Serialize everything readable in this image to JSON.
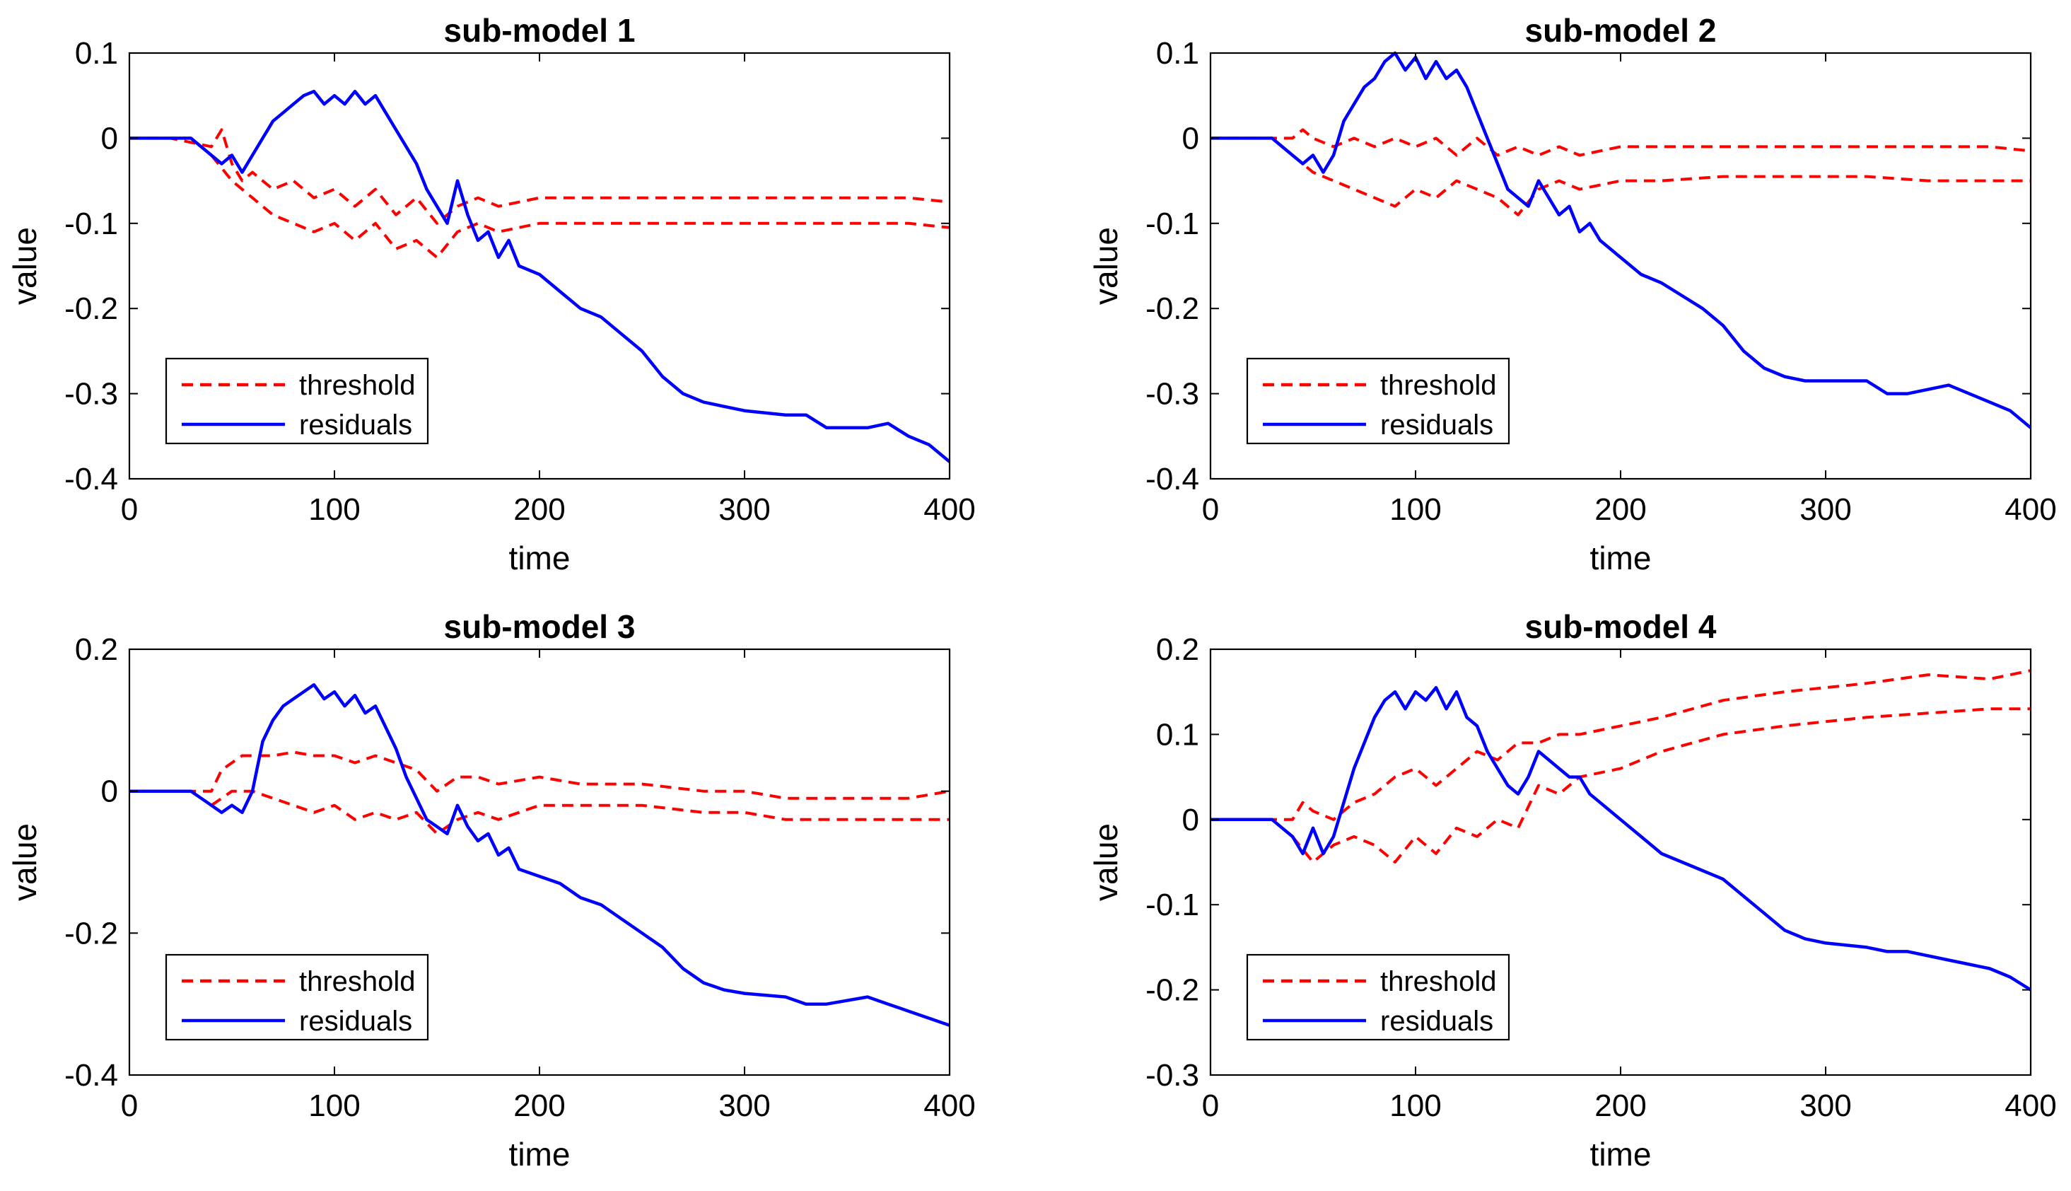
{
  "chart_data": [
    {
      "type": "line",
      "title": "sub-model 1",
      "xlabel": "time",
      "ylabel": "value",
      "xlim": [
        0,
        400
      ],
      "ylim": [
        -0.4,
        0.1
      ],
      "xticks": [
        0,
        100,
        200,
        300,
        400
      ],
      "yticks": [
        -0.4,
        -0.3,
        -0.2,
        -0.1,
        0,
        0.1
      ],
      "xtick_labels": [
        "0",
        "100",
        "200",
        "300",
        "400"
      ],
      "ytick_labels": [
        "-0.4",
        "-0.3",
        "-0.2",
        "-0.1",
        "0",
        "0.1"
      ],
      "legend": {
        "position": "bottom-left",
        "entries": [
          "threshold",
          "residuals"
        ]
      },
      "series": [
        {
          "name": "threshold",
          "color": "#ff0000",
          "style": "dashed",
          "x": [
            0,
            20,
            40,
            45,
            50,
            55,
            60,
            70,
            80,
            90,
            100,
            110,
            120,
            130,
            140,
            150,
            160,
            170,
            180,
            200,
            220,
            250,
            280,
            300,
            320,
            350,
            380,
            400
          ],
          "y": [
            0,
            0,
            -0.01,
            0.01,
            -0.03,
            -0.05,
            -0.04,
            -0.06,
            -0.05,
            -0.07,
            -0.06,
            -0.08,
            -0.06,
            -0.09,
            -0.07,
            -0.1,
            -0.08,
            -0.07,
            -0.08,
            -0.07,
            -0.07,
            -0.07,
            -0.07,
            -0.07,
            -0.07,
            -0.07,
            -0.07,
            -0.075
          ]
        },
        {
          "name": "threshold-lower",
          "color": "#ff0000",
          "style": "dashed",
          "x": [
            40,
            50,
            60,
            70,
            80,
            90,
            100,
            110,
            120,
            130,
            140,
            150,
            160,
            170,
            180,
            200,
            220,
            250,
            280,
            300,
            320,
            350,
            380,
            400
          ],
          "y": [
            -0.02,
            -0.05,
            -0.07,
            -0.09,
            -0.1,
            -0.11,
            -0.1,
            -0.12,
            -0.1,
            -0.13,
            -0.12,
            -0.14,
            -0.11,
            -0.1,
            -0.11,
            -0.1,
            -0.1,
            -0.1,
            -0.1,
            -0.1,
            -0.1,
            -0.1,
            -0.1,
            -0.105
          ]
        },
        {
          "name": "residuals",
          "color": "#0000ff",
          "style": "solid",
          "x": [
            0,
            20,
            30,
            40,
            45,
            50,
            55,
            60,
            65,
            70,
            75,
            80,
            85,
            90,
            95,
            100,
            105,
            110,
            115,
            120,
            125,
            130,
            135,
            140,
            145,
            150,
            155,
            160,
            165,
            170,
            175,
            180,
            185,
            190,
            200,
            210,
            220,
            230,
            240,
            250,
            260,
            270,
            280,
            290,
            300,
            320,
            330,
            340,
            360,
            370,
            380,
            390,
            400
          ],
          "y": [
            0,
            0,
            0,
            -0.02,
            -0.03,
            -0.02,
            -0.04,
            -0.02,
            0.0,
            0.02,
            0.03,
            0.04,
            0.05,
            0.055,
            0.04,
            0.05,
            0.04,
            0.055,
            0.04,
            0.05,
            0.03,
            0.01,
            -0.01,
            -0.03,
            -0.06,
            -0.08,
            -0.1,
            -0.05,
            -0.09,
            -0.12,
            -0.11,
            -0.14,
            -0.12,
            -0.15,
            -0.16,
            -0.18,
            -0.2,
            -0.21,
            -0.23,
            -0.25,
            -0.28,
            -0.3,
            -0.31,
            -0.315,
            -0.32,
            -0.325,
            -0.325,
            -0.34,
            -0.34,
            -0.335,
            -0.35,
            -0.36,
            -0.38
          ]
        }
      ]
    },
    {
      "type": "line",
      "title": "sub-model 2",
      "xlabel": "time",
      "ylabel": "value",
      "xlim": [
        0,
        400
      ],
      "ylim": [
        -0.4,
        0.1
      ],
      "xticks": [
        0,
        100,
        200,
        300,
        400
      ],
      "yticks": [
        -0.4,
        -0.3,
        -0.2,
        -0.1,
        0,
        0.1
      ],
      "xtick_labels": [
        "0",
        "100",
        "200",
        "300",
        "400"
      ],
      "ytick_labels": [
        "-0.4",
        "-0.3",
        "-0.2",
        "-0.1",
        "0",
        "0.1"
      ],
      "legend": {
        "position": "bottom-left",
        "entries": [
          "threshold",
          "residuals"
        ]
      },
      "series": [
        {
          "name": "threshold",
          "color": "#ff0000",
          "style": "dashed",
          "x": [
            0,
            20,
            40,
            45,
            50,
            60,
            70,
            80,
            90,
            100,
            110,
            120,
            130,
            140,
            150,
            160,
            170,
            180,
            200,
            220,
            250,
            280,
            300,
            320,
            350,
            380,
            400
          ],
          "y": [
            0,
            0,
            0,
            0.01,
            0.0,
            -0.01,
            0.0,
            -0.01,
            0.0,
            -0.01,
            0.0,
            -0.02,
            0.0,
            -0.02,
            -0.01,
            -0.02,
            -0.01,
            -0.02,
            -0.01,
            -0.01,
            -0.01,
            -0.01,
            -0.01,
            -0.01,
            -0.01,
            -0.01,
            -0.015
          ]
        },
        {
          "name": "threshold-lower",
          "color": "#ff0000",
          "style": "dashed",
          "x": [
            40,
            50,
            60,
            70,
            80,
            90,
            100,
            110,
            120,
            130,
            140,
            150,
            160,
            170,
            180,
            200,
            220,
            250,
            280,
            300,
            320,
            350,
            380,
            400
          ],
          "y": [
            -0.02,
            -0.04,
            -0.05,
            -0.06,
            -0.07,
            -0.08,
            -0.06,
            -0.07,
            -0.05,
            -0.06,
            -0.07,
            -0.09,
            -0.06,
            -0.05,
            -0.06,
            -0.05,
            -0.05,
            -0.045,
            -0.045,
            -0.045,
            -0.045,
            -0.05,
            -0.05,
            -0.05
          ]
        },
        {
          "name": "residuals",
          "color": "#0000ff",
          "style": "solid",
          "x": [
            0,
            20,
            30,
            40,
            45,
            50,
            55,
            60,
            65,
            70,
            75,
            80,
            85,
            90,
            95,
            100,
            105,
            110,
            115,
            120,
            125,
            130,
            135,
            140,
            145,
            150,
            155,
            160,
            165,
            170,
            175,
            180,
            185,
            190,
            200,
            210,
            220,
            230,
            240,
            250,
            260,
            270,
            280,
            290,
            300,
            320,
            330,
            340,
            360,
            370,
            380,
            390,
            400
          ],
          "y": [
            0,
            0,
            0,
            -0.02,
            -0.03,
            -0.02,
            -0.04,
            -0.02,
            0.02,
            0.04,
            0.06,
            0.07,
            0.09,
            0.1,
            0.08,
            0.095,
            0.07,
            0.09,
            0.07,
            0.08,
            0.06,
            0.03,
            0.0,
            -0.03,
            -0.06,
            -0.07,
            -0.08,
            -0.05,
            -0.07,
            -0.09,
            -0.08,
            -0.11,
            -0.1,
            -0.12,
            -0.14,
            -0.16,
            -0.17,
            -0.185,
            -0.2,
            -0.22,
            -0.25,
            -0.27,
            -0.28,
            -0.285,
            -0.285,
            -0.285,
            -0.3,
            -0.3,
            -0.29,
            -0.3,
            -0.31,
            -0.32,
            -0.34
          ]
        }
      ]
    },
    {
      "type": "line",
      "title": "sub-model 3",
      "xlabel": "time",
      "ylabel": "value",
      "xlim": [
        0,
        400
      ],
      "ylim": [
        -0.4,
        0.2
      ],
      "xticks": [
        0,
        100,
        200,
        300,
        400
      ],
      "yticks": [
        -0.4,
        -0.2,
        0,
        0.2
      ],
      "xtick_labels": [
        "0",
        "100",
        "200",
        "300",
        "400"
      ],
      "ytick_labels": [
        "-0.4",
        "-0.2",
        "0",
        "0.2"
      ],
      "legend": {
        "position": "bottom-left",
        "entries": [
          "threshold",
          "residuals"
        ]
      },
      "series": [
        {
          "name": "threshold",
          "color": "#ff0000",
          "style": "dashed",
          "x": [
            0,
            20,
            40,
            45,
            50,
            55,
            60,
            70,
            80,
            90,
            100,
            110,
            120,
            130,
            140,
            150,
            160,
            170,
            180,
            200,
            220,
            250,
            280,
            300,
            320,
            350,
            380,
            400
          ],
          "y": [
            0,
            0,
            0,
            0.03,
            0.04,
            0.05,
            0.05,
            0.05,
            0.055,
            0.05,
            0.05,
            0.04,
            0.05,
            0.04,
            0.03,
            0.0,
            0.02,
            0.02,
            0.01,
            0.02,
            0.01,
            0.01,
            0.0,
            0.0,
            -0.01,
            -0.01,
            -0.01,
            0.0
          ]
        },
        {
          "name": "threshold-lower",
          "color": "#ff0000",
          "style": "dashed",
          "x": [
            40,
            50,
            60,
            70,
            80,
            90,
            100,
            110,
            120,
            130,
            140,
            150,
            160,
            170,
            180,
            200,
            220,
            250,
            280,
            300,
            320,
            350,
            380,
            400
          ],
          "y": [
            -0.02,
            0.0,
            0.0,
            -0.01,
            -0.02,
            -0.03,
            -0.02,
            -0.04,
            -0.03,
            -0.04,
            -0.03,
            -0.06,
            -0.04,
            -0.03,
            -0.04,
            -0.02,
            -0.02,
            -0.02,
            -0.03,
            -0.03,
            -0.04,
            -0.04,
            -0.04,
            -0.04
          ]
        },
        {
          "name": "residuals",
          "color": "#0000ff",
          "style": "solid",
          "x": [
            0,
            20,
            30,
            40,
            45,
            50,
            55,
            60,
            65,
            70,
            75,
            80,
            85,
            90,
            95,
            100,
            105,
            110,
            115,
            120,
            125,
            130,
            135,
            140,
            145,
            150,
            155,
            160,
            165,
            170,
            175,
            180,
            185,
            190,
            200,
            210,
            220,
            230,
            240,
            250,
            260,
            270,
            280,
            290,
            300,
            320,
            330,
            340,
            360,
            370,
            380,
            390,
            400
          ],
          "y": [
            0,
            0,
            0,
            -0.02,
            -0.03,
            -0.02,
            -0.03,
            0.0,
            0.07,
            0.1,
            0.12,
            0.13,
            0.14,
            0.15,
            0.13,
            0.14,
            0.12,
            0.135,
            0.11,
            0.12,
            0.09,
            0.06,
            0.02,
            -0.01,
            -0.04,
            -0.05,
            -0.06,
            -0.02,
            -0.05,
            -0.07,
            -0.06,
            -0.09,
            -0.08,
            -0.11,
            -0.12,
            -0.13,
            -0.15,
            -0.16,
            -0.18,
            -0.2,
            -0.22,
            -0.25,
            -0.27,
            -0.28,
            -0.285,
            -0.29,
            -0.3,
            -0.3,
            -0.29,
            -0.3,
            -0.31,
            -0.32,
            -0.33
          ]
        }
      ]
    },
    {
      "type": "line",
      "title": "sub-model 4",
      "xlabel": "time",
      "ylabel": "value",
      "xlim": [
        0,
        400
      ],
      "ylim": [
        -0.3,
        0.2
      ],
      "xticks": [
        0,
        100,
        200,
        300,
        400
      ],
      "yticks": [
        -0.3,
        -0.2,
        -0.1,
        0,
        0.1,
        0.2
      ],
      "xtick_labels": [
        "0",
        "100",
        "200",
        "300",
        "400"
      ],
      "ytick_labels": [
        "-0.3",
        "-0.2",
        "-0.1",
        "0",
        "0.1",
        "0.2"
      ],
      "legend": {
        "position": "bottom-left",
        "entries": [
          "threshold",
          "residuals"
        ]
      },
      "series": [
        {
          "name": "threshold",
          "color": "#ff0000",
          "style": "dashed",
          "x": [
            0,
            20,
            40,
            45,
            50,
            60,
            70,
            80,
            90,
            100,
            110,
            120,
            130,
            140,
            150,
            160,
            170,
            180,
            200,
            220,
            250,
            280,
            300,
            320,
            350,
            380,
            400
          ],
          "y": [
            0,
            0,
            0,
            0.02,
            0.01,
            0.0,
            0.02,
            0.03,
            0.05,
            0.06,
            0.04,
            0.06,
            0.08,
            0.07,
            0.09,
            0.09,
            0.1,
            0.1,
            0.11,
            0.12,
            0.14,
            0.15,
            0.155,
            0.16,
            0.17,
            0.165,
            0.175
          ]
        },
        {
          "name": "threshold-lower",
          "color": "#ff0000",
          "style": "dashed",
          "x": [
            40,
            50,
            60,
            70,
            80,
            90,
            100,
            110,
            120,
            130,
            140,
            150,
            160,
            170,
            180,
            200,
            220,
            250,
            280,
            300,
            320,
            350,
            380,
            400
          ],
          "y": [
            -0.02,
            -0.05,
            -0.03,
            -0.02,
            -0.03,
            -0.05,
            -0.02,
            -0.04,
            -0.01,
            -0.02,
            0.0,
            -0.01,
            0.04,
            0.03,
            0.05,
            0.06,
            0.08,
            0.1,
            0.11,
            0.115,
            0.12,
            0.125,
            0.13,
            0.13
          ]
        },
        {
          "name": "residuals",
          "color": "#0000ff",
          "style": "solid",
          "x": [
            0,
            20,
            30,
            40,
            45,
            50,
            55,
            60,
            65,
            70,
            75,
            80,
            85,
            90,
            95,
            100,
            105,
            110,
            115,
            120,
            125,
            130,
            135,
            140,
            145,
            150,
            155,
            160,
            165,
            170,
            175,
            180,
            185,
            190,
            200,
            210,
            220,
            230,
            240,
            250,
            260,
            270,
            280,
            290,
            300,
            320,
            330,
            340,
            360,
            370,
            380,
            390,
            400
          ],
          "y": [
            0,
            0,
            0,
            -0.02,
            -0.04,
            -0.01,
            -0.04,
            -0.02,
            0.02,
            0.06,
            0.09,
            0.12,
            0.14,
            0.15,
            0.13,
            0.15,
            0.14,
            0.155,
            0.13,
            0.15,
            0.12,
            0.11,
            0.08,
            0.06,
            0.04,
            0.03,
            0.05,
            0.08,
            0.07,
            0.06,
            0.05,
            0.05,
            0.03,
            0.02,
            0.0,
            -0.02,
            -0.04,
            -0.05,
            -0.06,
            -0.07,
            -0.09,
            -0.11,
            -0.13,
            -0.14,
            -0.145,
            -0.15,
            -0.155,
            -0.155,
            -0.165,
            -0.17,
            -0.175,
            -0.185,
            -0.2
          ]
        }
      ]
    }
  ]
}
